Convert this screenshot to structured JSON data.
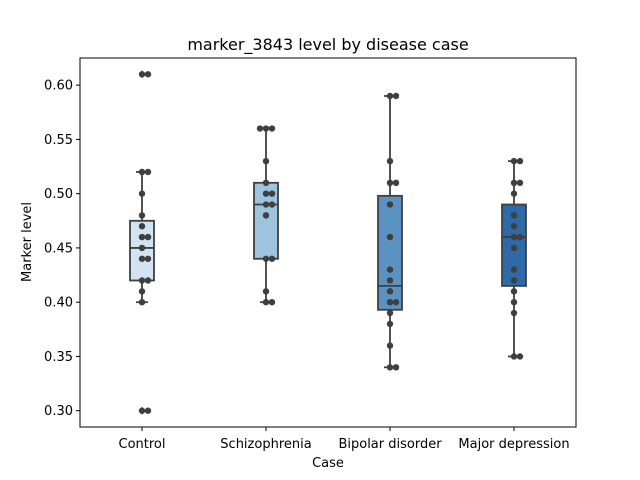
{
  "chart_data": {
    "type": "box",
    "title": "marker_3843 level by disease case",
    "xlabel": "Case",
    "ylabel": "Marker level",
    "ylim": [
      0.285,
      0.625
    ],
    "yticks": [
      0.3,
      0.35,
      0.4,
      0.45,
      0.5,
      0.55,
      0.6
    ],
    "ytick_labels": [
      "0.30",
      "0.35",
      "0.40",
      "0.45",
      "0.50",
      "0.55",
      "0.60"
    ],
    "grid": false,
    "categories": [
      "Control",
      "Schizophrenia",
      "Bipolar disorder",
      "Major depression"
    ],
    "colors": [
      "#d2e3f3",
      "#9dc3dd",
      "#5a93c2",
      "#2e69a8"
    ],
    "boxes": [
      {
        "q1": 0.42,
        "median": 0.45,
        "q3": 0.475,
        "whisker_low": 0.4,
        "whisker_high": 0.52,
        "outliers": [
          0.61,
          0.3
        ]
      },
      {
        "q1": 0.44,
        "median": 0.49,
        "q3": 0.51,
        "whisker_low": 0.4,
        "whisker_high": 0.56,
        "outliers": []
      },
      {
        "q1": 0.393,
        "median": 0.415,
        "q3": 0.498,
        "whisker_low": 0.34,
        "whisker_high": 0.59,
        "outliers": []
      },
      {
        "q1": 0.415,
        "median": 0.46,
        "q3": 0.49,
        "whisker_low": 0.35,
        "whisker_high": 0.53,
        "outliers": []
      }
    ],
    "points": [
      [
        0.61,
        0.61,
        0.52,
        0.52,
        0.5,
        0.48,
        0.47,
        0.46,
        0.46,
        0.45,
        0.44,
        0.44,
        0.42,
        0.42,
        0.41,
        0.4,
        0.3,
        0.3
      ],
      [
        0.56,
        0.56,
        0.56,
        0.53,
        0.51,
        0.5,
        0.5,
        0.49,
        0.49,
        0.48,
        0.44,
        0.44,
        0.41,
        0.4,
        0.4
      ],
      [
        0.59,
        0.59,
        0.53,
        0.51,
        0.51,
        0.49,
        0.46,
        0.43,
        0.42,
        0.41,
        0.4,
        0.4,
        0.39,
        0.38,
        0.36,
        0.34,
        0.34
      ],
      [
        0.53,
        0.53,
        0.51,
        0.51,
        0.5,
        0.48,
        0.47,
        0.46,
        0.46,
        0.45,
        0.43,
        0.42,
        0.41,
        0.4,
        0.39,
        0.35,
        0.35
      ]
    ]
  }
}
